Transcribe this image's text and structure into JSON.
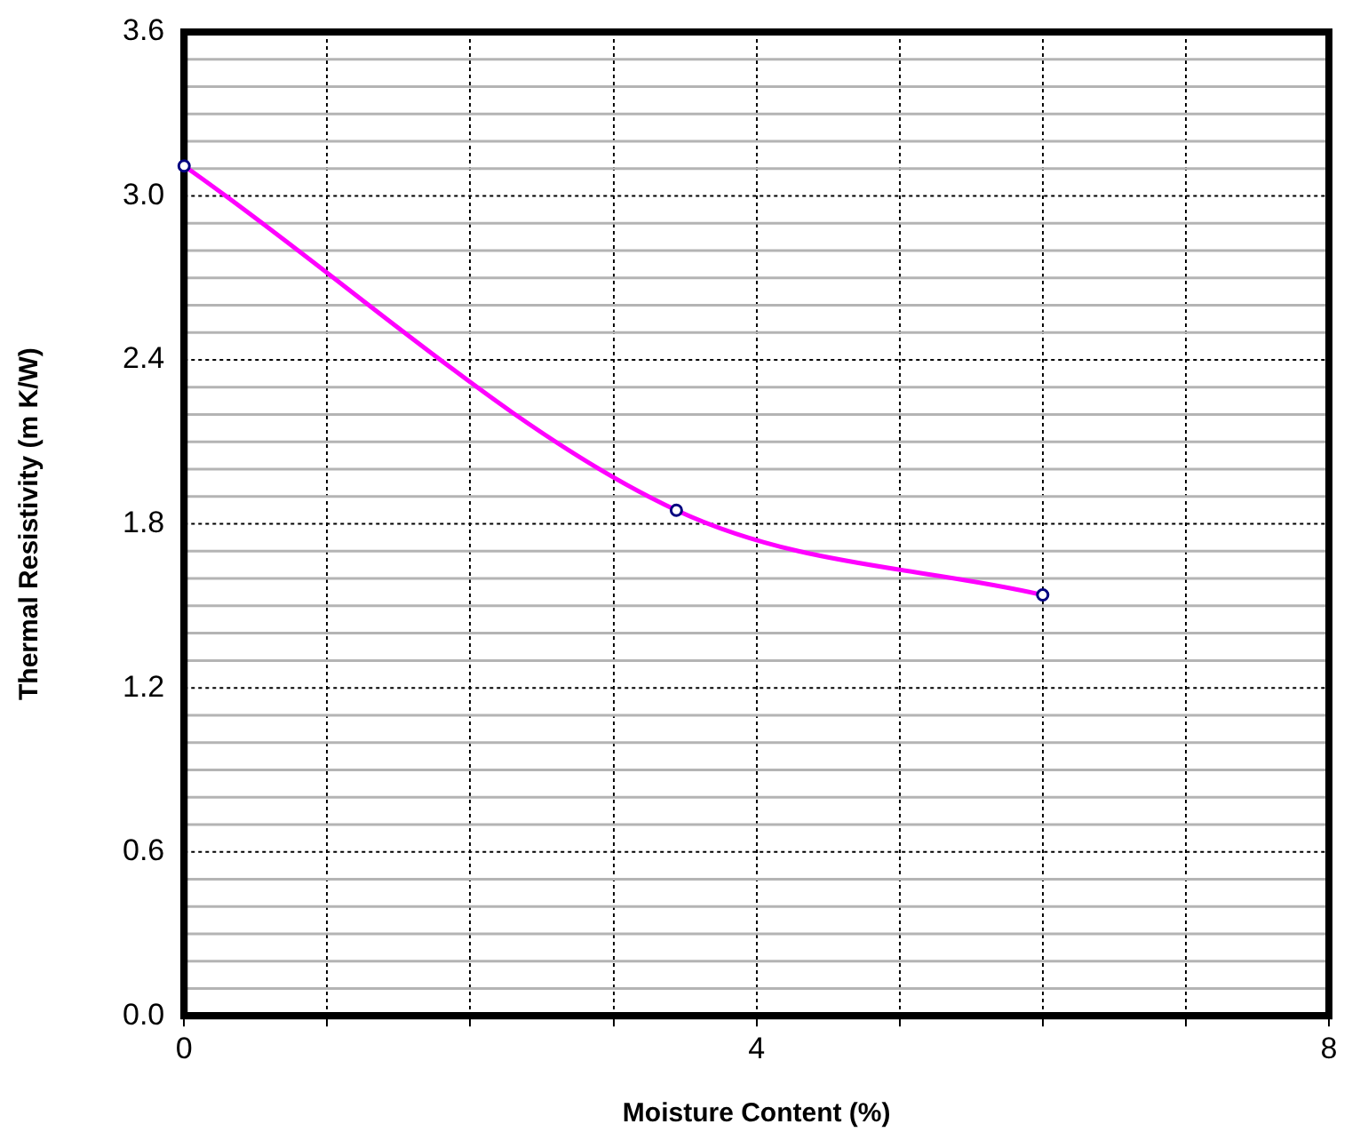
{
  "chart_data": {
    "type": "line",
    "xlabel": "Moisture Content (%)",
    "ylabel": "Thermal Resistivity (m K/W)",
    "x": [
      0,
      3.44,
      6.0
    ],
    "series": [
      {
        "color": "#ff00ff",
        "values": [
          3.11,
          1.85,
          1.54
        ]
      }
    ],
    "xlim": [
      0,
      8
    ],
    "xticks": [
      0,
      {
        "value": 1,
        "label": null
      },
      {
        "value": 2,
        "label": null
      },
      {
        "value": 3,
        "label": null
      },
      4,
      {
        "value": 5,
        "label": null
      },
      {
        "value": 6,
        "label": null
      },
      {
        "value": 7,
        "label": null
      },
      8
    ],
    "ylim": [
      0,
      3.6
    ],
    "yticks": [
      {
        "value": 0,
        "label": "0.0"
      },
      {
        "value": 0.1,
        "label": null
      },
      {
        "value": 0.2,
        "label": null
      },
      {
        "value": 0.3,
        "label": null
      },
      {
        "value": 0.4,
        "label": null
      },
      {
        "value": 0.5,
        "label": null
      },
      {
        "value": 0.6,
        "label": "0.6"
      },
      {
        "value": 0.7,
        "label": null
      },
      {
        "value": 0.8,
        "label": null
      },
      {
        "value": 0.9,
        "label": null
      },
      {
        "value": 1.0,
        "label": null
      },
      {
        "value": 1.1,
        "label": null
      },
      {
        "value": 1.2,
        "label": "1.2"
      },
      {
        "value": 1.3,
        "label": null
      },
      {
        "value": 1.4,
        "label": null
      },
      {
        "value": 1.5,
        "label": null
      },
      {
        "value": 1.6,
        "label": null
      },
      {
        "value": 1.7,
        "label": null
      },
      {
        "value": 1.8,
        "label": "1.8"
      },
      {
        "value": 1.9,
        "label": null
      },
      {
        "value": 2.0,
        "label": null
      },
      {
        "value": 2.1,
        "label": null
      },
      {
        "value": 2.2,
        "label": null
      },
      {
        "value": 2.3,
        "label": null
      },
      {
        "value": 2.4,
        "label": "2.4"
      },
      {
        "value": 2.5,
        "label": null
      },
      {
        "value": 2.6,
        "label": null
      },
      {
        "value": 2.7,
        "label": null
      },
      {
        "value": 2.8,
        "label": null
      },
      {
        "value": 2.9,
        "label": null
      },
      {
        "value": 3.0,
        "label": "3.0"
      },
      {
        "value": 3.1,
        "label": null
      },
      {
        "value": 3.2,
        "label": null
      },
      {
        "value": 3.3,
        "label": null
      },
      {
        "value": 3.4,
        "label": null
      },
      {
        "value": 3.5,
        "label": null
      },
      {
        "value": 3.6,
        "label": "3.6"
      }
    ],
    "grid": true,
    "marker": "circle",
    "line_style": "solid",
    "legend": false
  }
}
